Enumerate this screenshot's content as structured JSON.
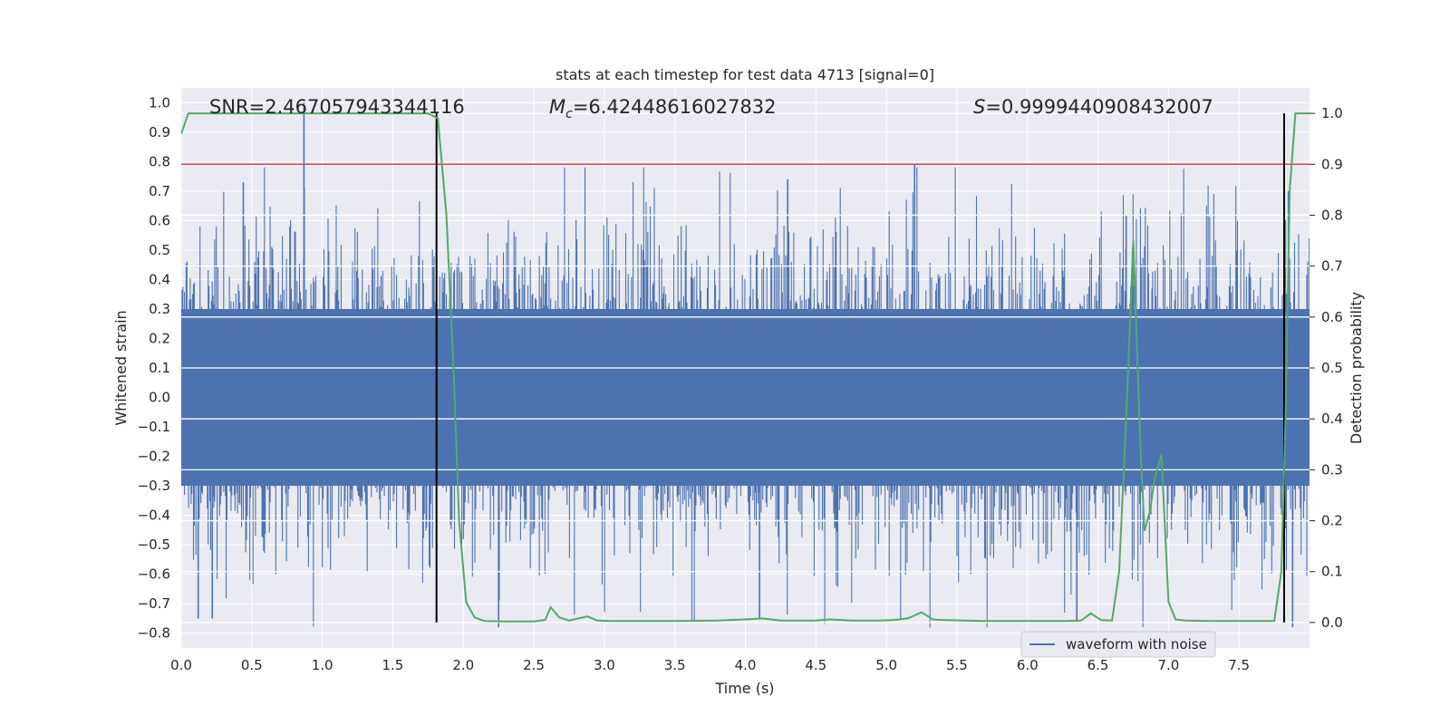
{
  "chart_data": {
    "type": "line",
    "title": "stats at each timestep for test data 4713 [signal=0]",
    "xlabel": "Time (s)",
    "ylabel_left": "Whitened strain",
    "ylabel_right": "Detection probability",
    "xlim": [
      0.0,
      8.0
    ],
    "ylim_left": [
      -0.85,
      1.05
    ],
    "ylim_right": [
      -0.05,
      1.05
    ],
    "x_ticks": [
      "0.0",
      "0.5",
      "1.0",
      "1.5",
      "2.0",
      "2.5",
      "3.0",
      "3.5",
      "4.0",
      "4.5",
      "5.0",
      "5.5",
      "6.0",
      "6.5",
      "7.0",
      "7.5"
    ],
    "y_ticks_left": [
      "−0.8",
      "−0.7",
      "−0.6",
      "−0.5",
      "−0.4",
      "−0.3",
      "−0.2",
      "−0.1",
      "0.0",
      "0.1",
      "0.2",
      "0.3",
      "0.4",
      "0.5",
      "0.6",
      "0.7",
      "0.8",
      "0.9",
      "1.0"
    ],
    "y_ticks_right": [
      "0.0",
      "0.1",
      "0.2",
      "0.3",
      "0.4",
      "0.5",
      "0.6",
      "0.7",
      "0.8",
      "0.9",
      "1.0"
    ],
    "grid": true,
    "annotations": {
      "snr": "SNR=2.467057943344116",
      "mc_symbol": "M",
      "mc_sub": "c",
      "mc_value": "=6.42448616027832",
      "s_symbol": "S",
      "s_value": "=0.9999440908432007"
    },
    "threshold": {
      "axis": "right",
      "value": 0.9,
      "color": "#c44e52"
    },
    "event_markers": {
      "x": [
        1.81,
        7.82
      ],
      "y_range": [
        0.0,
        1.0
      ],
      "axis": "right",
      "color": "#000000"
    },
    "legend": {
      "label": "waveform with noise",
      "position": "lower-right"
    },
    "series": [
      {
        "name": "waveform with noise",
        "axis": "left",
        "color": "#4c72b0",
        "kind": "noise-envelope",
        "core_band": [
          -0.3,
          0.3
        ],
        "spikes": [
          {
            "x": 0.87,
            "y": 1.0
          },
          {
            "x": 1.81,
            "y": 0.53
          },
          {
            "x": 0.44,
            "y": 0.73
          },
          {
            "x": 4.1,
            "y": -0.75
          },
          {
            "x": 2.25,
            "y": -0.78
          },
          {
            "x": 5.2,
            "y": 0.79
          },
          {
            "x": 4.3,
            "y": 0.74
          },
          {
            "x": 0.12,
            "y": -0.75
          },
          {
            "x": 0.22,
            "y": -0.75
          },
          {
            "x": 6.35,
            "y": -0.76
          },
          {
            "x": 7.88,
            "y": -0.78
          },
          {
            "x": 6.7,
            "y": 0.62
          },
          {
            "x": 7.85,
            "y": 0.7
          }
        ]
      },
      {
        "name": "Detection probability",
        "axis": "right",
        "color": "#55a868",
        "x": [
          0.0,
          0.05,
          0.5,
          1.0,
          1.5,
          1.75,
          1.82,
          1.88,
          1.93,
          1.97,
          2.02,
          2.08,
          2.15,
          2.3,
          2.5,
          2.58,
          2.62,
          2.68,
          2.75,
          2.88,
          2.95,
          3.05,
          3.5,
          3.8,
          4.0,
          4.12,
          4.25,
          4.5,
          4.6,
          4.75,
          4.95,
          5.05,
          5.15,
          5.25,
          5.33,
          5.4,
          5.55,
          5.7,
          6.0,
          6.25,
          6.38,
          6.45,
          6.52,
          6.6,
          6.65,
          6.7,
          6.75,
          6.8,
          6.83,
          6.87,
          6.9,
          6.95,
          7.0,
          7.05,
          7.12,
          7.3,
          7.5,
          7.75,
          7.8,
          7.83,
          7.86,
          7.9,
          7.95,
          8.0
        ],
        "y": [
          0.96,
          1.0,
          1.0,
          1.0,
          1.0,
          1.0,
          0.99,
          0.8,
          0.5,
          0.2,
          0.04,
          0.01,
          0.003,
          0.002,
          0.002,
          0.005,
          0.03,
          0.01,
          0.004,
          0.012,
          0.004,
          0.003,
          0.003,
          0.004,
          0.006,
          0.008,
          0.004,
          0.004,
          0.006,
          0.004,
          0.004,
          0.005,
          0.008,
          0.02,
          0.006,
          0.005,
          0.004,
          0.003,
          0.003,
          0.003,
          0.004,
          0.018,
          0.005,
          0.004,
          0.1,
          0.4,
          0.75,
          0.35,
          0.18,
          0.22,
          0.28,
          0.33,
          0.04,
          0.006,
          0.004,
          0.003,
          0.003,
          0.003,
          0.1,
          0.4,
          0.85,
          1.0,
          1.0,
          1.0
        ]
      }
    ]
  }
}
